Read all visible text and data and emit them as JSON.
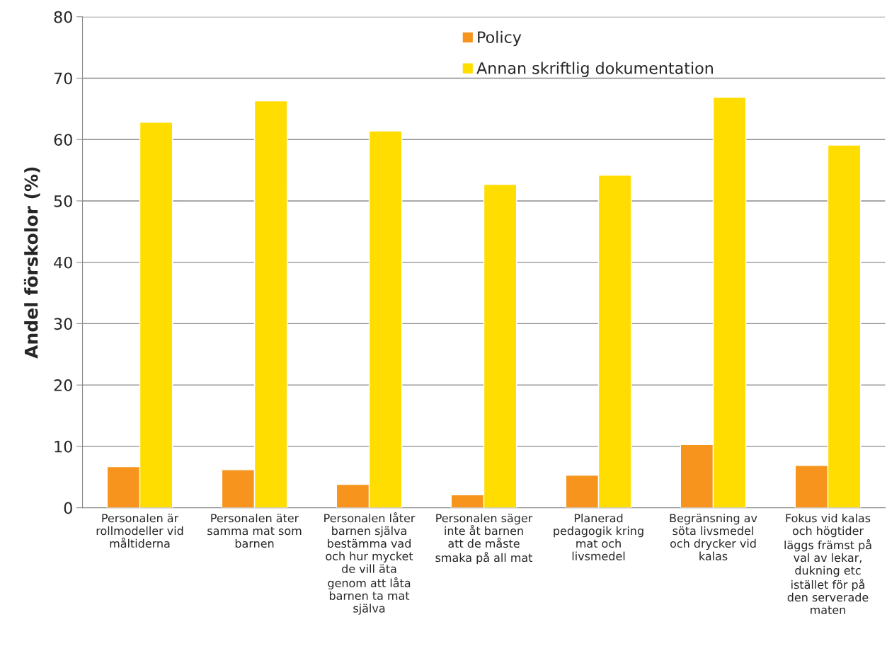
{
  "chart_data": {
    "type": "bar",
    "ylabel": "Andel förskolor (%)",
    "categories": [
      "Personalen är\nrollmodeller vid\nmåltiderna",
      "Personalen äter\nsamma mat som\nbarnen",
      "Personalen låter\nbarnen själva\nbestämma vad\noch hur mycket\nde vill äta\ngenom att låta\nbarnen ta mat\nsjälva",
      "Personalen säger\ninte åt barnen\natt de måste\nsmaka på all mat",
      "Planerad\npedagogik kring\nmat och\nlivsmedel",
      "Begränsning av\nsöta livsmedel\noch drycker vid\nkalas",
      "Fokus vid kalas\noch högtider\nläggs främst på\nval av lekar,\ndukning etc\nistället för på\nden serverade\nmaten"
    ],
    "series": [
      {
        "name": "Policy",
        "color": "#f7941d",
        "values": [
          6.7,
          6.2,
          3.8,
          2.1,
          5.3,
          10.3,
          6.9
        ]
      },
      {
        "name": "Annan skriftlig dokumentation",
        "color": "#ffdd00",
        "values": [
          62.8,
          66.3,
          61.4,
          52.7,
          54.2,
          66.9,
          59.1
        ]
      }
    ],
    "ylim": [
      0,
      80
    ],
    "yticks": [
      0,
      10,
      20,
      30,
      40,
      50,
      60,
      70,
      80
    ],
    "grid": "y",
    "legend": "top"
  }
}
